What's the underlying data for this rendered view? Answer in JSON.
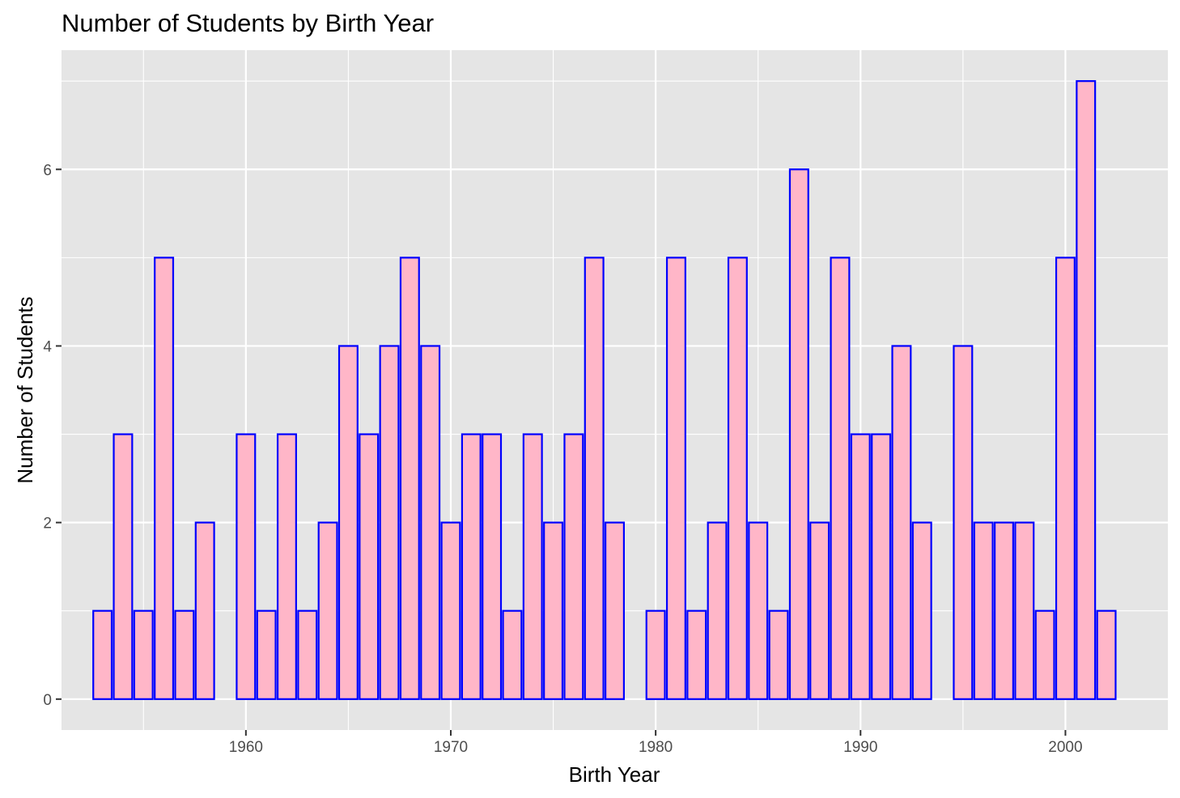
{
  "chart_data": {
    "type": "bar",
    "title": "Number of Students by Birth Year",
    "xlabel": "Birth Year",
    "ylabel": "Number of Students",
    "x": [
      1953,
      1954,
      1955,
      1956,
      1957,
      1958,
      1960,
      1961,
      1962,
      1963,
      1964,
      1965,
      1966,
      1967,
      1968,
      1969,
      1970,
      1971,
      1972,
      1973,
      1974,
      1975,
      1976,
      1977,
      1978,
      1980,
      1981,
      1982,
      1983,
      1984,
      1985,
      1986,
      1987,
      1988,
      1989,
      1990,
      1991,
      1992,
      1993,
      1995,
      1996,
      1997,
      1998,
      1999,
      2000,
      2001,
      2002
    ],
    "values": [
      1,
      3,
      1,
      5,
      1,
      2,
      3,
      1,
      3,
      1,
      2,
      4,
      3,
      4,
      5,
      4,
      2,
      3,
      3,
      1,
      3,
      2,
      3,
      5,
      2,
      1,
      5,
      1,
      2,
      5,
      2,
      1,
      6,
      2,
      5,
      3,
      3,
      4,
      2,
      4,
      2,
      2,
      2,
      1,
      5,
      7,
      1
    ],
    "xlim": [
      1951,
      2005
    ],
    "ylim": [
      -0.35,
      7.35
    ],
    "x_ticks": [
      "1960",
      "1970",
      "1980",
      "1990",
      "2000"
    ],
    "y_ticks": [
      "0",
      "2",
      "4",
      "6"
    ],
    "grid": true,
    "bar_fill": "#FFB6C8",
    "bar_stroke": "#0000FF",
    "panel_background": "#E5E5E5",
    "grid_color": "#FFFFFF"
  }
}
